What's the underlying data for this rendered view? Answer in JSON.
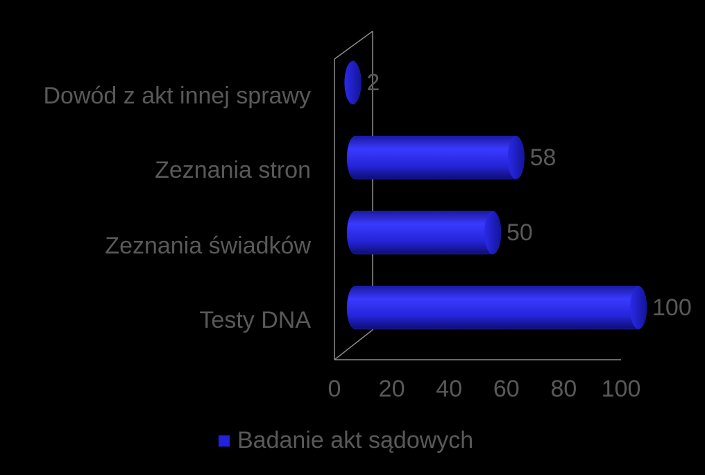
{
  "chart_data": {
    "type": "bar",
    "orientation": "horizontal",
    "categories": [
      "Testy DNA",
      "Zeznania świadków",
      "Zeznania stron",
      "Dowód z akt innej sprawy"
    ],
    "series": [
      {
        "name": "Badanie akt sądowych",
        "color": "#2222dd",
        "values": [
          100,
          50,
          58,
          2
        ]
      }
    ],
    "xlim": [
      0,
      100
    ],
    "xticks": [
      0,
      20,
      40,
      60,
      80,
      100
    ],
    "grid": false,
    "legend": "bottom"
  }
}
